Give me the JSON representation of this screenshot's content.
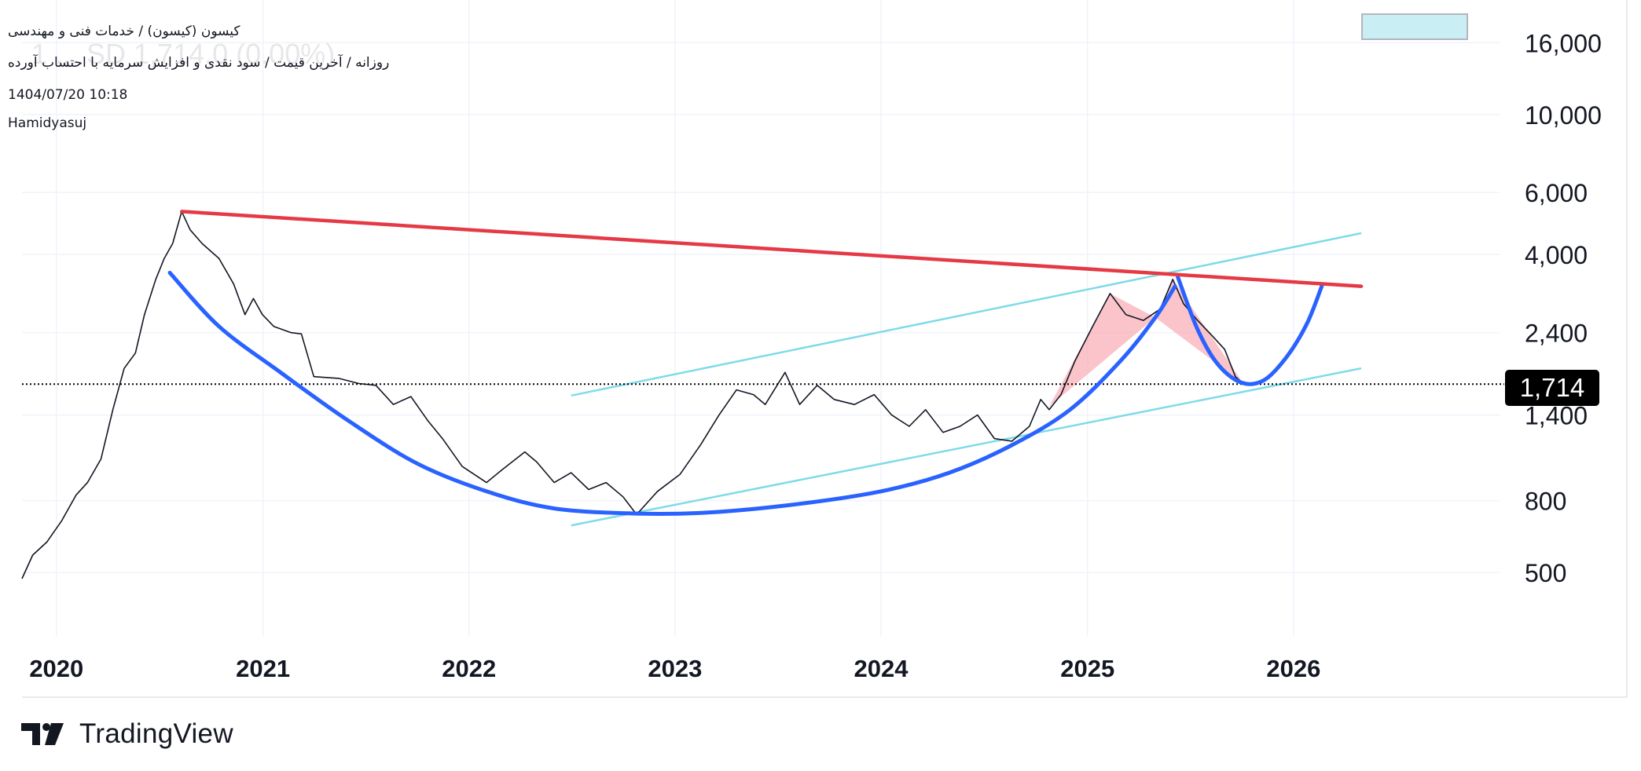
{
  "header": {
    "symbol_line": "کیسون (کیسون) / خدمات فنی و مهندسی",
    "series_line": "روزانه / آخرین قیمت / سود نقدی و افزایش سرمایه با احتساب آورده",
    "datetime": "1404/07/20 10:18",
    "author": "Hamidyasuj",
    "watermark": "1 ... SD 1,714.0 (0.00%)"
  },
  "logo": {
    "text": "TradingView"
  },
  "current_price": {
    "label": "1,714",
    "value": 1714
  },
  "colors": {
    "red_line": "#e53945",
    "blue_curve": "#2962ff",
    "channel": "#7fdbe8",
    "pattern_fill": "#f7a5ad",
    "price_line": "#000000"
  },
  "chart_data": {
    "type": "line",
    "title": "",
    "xlabel": "",
    "ylabel": "",
    "y_scale": "log",
    "ylim": [
      330,
      18500
    ],
    "xlim": [
      "2019-11-01",
      "2027-01-01"
    ],
    "grid": true,
    "y_ticks": [
      {
        "label": "500",
        "value": 500
      },
      {
        "label": "800",
        "value": 800
      },
      {
        "label": "1,400",
        "value": 1400
      },
      {
        "label": "2,400",
        "value": 2400
      },
      {
        "label": "4,000",
        "value": 4000
      },
      {
        "label": "6,000",
        "value": 6000
      },
      {
        "label": "10,000",
        "value": 10000
      },
      {
        "label": "16,000",
        "value": 16000
      }
    ],
    "x_ticks": [
      {
        "label": "2020",
        "date": "2020-01-01"
      },
      {
        "label": "2021",
        "date": "2021-01-01"
      },
      {
        "label": "2022",
        "date": "2022-01-01"
      },
      {
        "label": "2023",
        "date": "2023-01-01"
      },
      {
        "label": "2024",
        "date": "2024-01-01"
      },
      {
        "label": "2025",
        "date": "2025-01-01"
      },
      {
        "label": "2026",
        "date": "2026-01-01"
      }
    ],
    "series": [
      {
        "points": [
          [
            "2019-11-01",
            480
          ],
          [
            "2019-11-20",
            560
          ],
          [
            "2019-12-15",
            610
          ],
          [
            "2020-01-10",
            700
          ],
          [
            "2020-02-05",
            830
          ],
          [
            "2020-02-25",
            900
          ],
          [
            "2020-03-20",
            1050
          ],
          [
            "2020-04-10",
            1450
          ],
          [
            "2020-04-30",
            1900
          ],
          [
            "2020-05-20",
            2100
          ],
          [
            "2020-06-05",
            2700
          ],
          [
            "2020-06-25",
            3400
          ],
          [
            "2020-07-10",
            3900
          ],
          [
            "2020-07-25",
            4300
          ],
          [
            "2020-08-10",
            5300
          ],
          [
            "2020-08-25",
            4700
          ],
          [
            "2020-09-15",
            4300
          ],
          [
            "2020-10-15",
            3900
          ],
          [
            "2020-11-10",
            3300
          ],
          [
            "2020-11-30",
            2700
          ],
          [
            "2020-12-15",
            3000
          ],
          [
            "2020-12-31",
            2700
          ],
          [
            "2021-01-20",
            2500
          ],
          [
            "2021-02-20",
            2400
          ],
          [
            "2021-03-10",
            2380
          ],
          [
            "2021-04-01",
            1800
          ],
          [
            "2021-05-15",
            1780
          ],
          [
            "2021-06-20",
            1720
          ],
          [
            "2021-07-20",
            1700
          ],
          [
            "2021-08-20",
            1500
          ],
          [
            "2021-09-20",
            1580
          ],
          [
            "2021-10-20",
            1350
          ],
          [
            "2021-11-15",
            1200
          ],
          [
            "2021-12-20",
            1000
          ],
          [
            "2022-02-01",
            900
          ],
          [
            "2022-03-01",
            980
          ],
          [
            "2022-04-10",
            1100
          ],
          [
            "2022-05-01",
            1030
          ],
          [
            "2022-06-01",
            900
          ],
          [
            "2022-07-01",
            960
          ],
          [
            "2022-08-01",
            860
          ],
          [
            "2022-09-01",
            900
          ],
          [
            "2022-10-01",
            820
          ],
          [
            "2022-10-25",
            730
          ],
          [
            "2022-12-01",
            850
          ],
          [
            "2023-01-10",
            950
          ],
          [
            "2023-02-15",
            1150
          ],
          [
            "2023-03-20",
            1400
          ],
          [
            "2023-04-20",
            1650
          ],
          [
            "2023-05-20",
            1600
          ],
          [
            "2023-06-10",
            1500
          ],
          [
            "2023-07-15",
            1850
          ],
          [
            "2023-08-10",
            1500
          ],
          [
            "2023-09-10",
            1700
          ],
          [
            "2023-10-10",
            1550
          ],
          [
            "2023-11-15",
            1500
          ],
          [
            "2023-12-20",
            1600
          ],
          [
            "2024-01-20",
            1400
          ],
          [
            "2024-02-20",
            1300
          ],
          [
            "2024-03-20",
            1450
          ],
          [
            "2024-04-20",
            1250
          ],
          [
            "2024-05-20",
            1300
          ],
          [
            "2024-06-20",
            1400
          ],
          [
            "2024-07-20",
            1200
          ],
          [
            "2024-08-20",
            1180
          ],
          [
            "2024-09-20",
            1300
          ],
          [
            "2024-10-10",
            1550
          ],
          [
            "2024-10-25",
            1450
          ],
          [
            "2024-11-15",
            1600
          ],
          [
            "2024-12-10",
            2000
          ],
          [
            "2025-01-10",
            2500
          ],
          [
            "2025-02-10",
            3100
          ],
          [
            "2025-03-10",
            2700
          ],
          [
            "2025-04-10",
            2600
          ],
          [
            "2025-05-10",
            2800
          ],
          [
            "2025-06-01",
            3400
          ],
          [
            "2025-06-20",
            2900
          ],
          [
            "2025-07-15",
            2600
          ],
          [
            "2025-08-10",
            2350
          ],
          [
            "2025-09-01",
            2150
          ],
          [
            "2025-09-20",
            1800
          ],
          [
            "2025-10-05",
            1714
          ]
        ]
      }
    ],
    "drawings": {
      "resistance_line": [
        [
          "2020-08-10",
          5300
        ],
        [
          "2026-05-01",
          3250
        ]
      ],
      "channel_upper": [
        [
          "2022-07-01",
          1590
        ],
        [
          "2026-05-01",
          4600
        ]
      ],
      "channel_lower": [
        [
          "2022-07-01",
          680
        ],
        [
          "2026-05-01",
          1900
        ]
      ],
      "cup_curve": [
        [
          "2020-07-20",
          3550
        ],
        [
          "2020-10-15",
          2500
        ],
        [
          "2021-02-01",
          1850
        ],
        [
          "2021-06-01",
          1350
        ],
        [
          "2021-10-01",
          1020
        ],
        [
          "2022-02-01",
          850
        ],
        [
          "2022-06-01",
          760
        ],
        [
          "2022-10-25",
          735
        ],
        [
          "2023-03-01",
          740
        ],
        [
          "2023-08-01",
          780
        ],
        [
          "2024-01-01",
          850
        ],
        [
          "2024-05-01",
          960
        ],
        [
          "2024-08-20",
          1150
        ],
        [
          "2024-12-01",
          1450
        ],
        [
          "2025-03-01",
          2000
        ],
        [
          "2025-05-01",
          2650
        ],
        [
          "2025-06-05",
          3250
        ]
      ],
      "handle_curve": [
        [
          "2025-06-10",
          3450
        ],
        [
          "2025-07-15",
          2450
        ],
        [
          "2025-08-20",
          1950
        ],
        [
          "2025-10-01",
          1730
        ],
        [
          "2025-11-10",
          1760
        ],
        [
          "2025-12-20",
          2050
        ],
        [
          "2026-01-25",
          2550
        ],
        [
          "2026-02-20",
          3250
        ]
      ],
      "harmonic_pattern": [
        [
          "2024-10-25",
          1480
        ],
        [
          "2025-02-10",
          3100
        ],
        [
          "2025-05-01",
          2650
        ],
        [
          "2025-06-01",
          3400
        ],
        [
          "2025-10-05",
          1714
        ]
      ]
    }
  }
}
